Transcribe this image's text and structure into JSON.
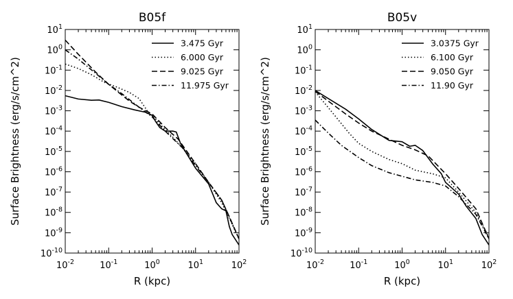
{
  "chart_data": [
    {
      "type": "line",
      "title": "B05f",
      "xlabel": "R (kpc)",
      "ylabel": "Surface Brightness (erg/s/cm^2)",
      "xscale": "log",
      "yscale": "log",
      "xlim": [
        0.01,
        100
      ],
      "ylim": [
        1e-10,
        10
      ],
      "xticks": [
        {
          "base": "10",
          "exp": "-2"
        },
        {
          "base": "10",
          "exp": "-1"
        },
        {
          "base": "10",
          "exp": "0"
        },
        {
          "base": "10",
          "exp": "1"
        },
        {
          "base": "10",
          "exp": "2"
        }
      ],
      "yticks": [
        {
          "base": "10",
          "exp": "-10"
        },
        {
          "base": "10",
          "exp": "-9"
        },
        {
          "base": "10",
          "exp": "-8"
        },
        {
          "base": "10",
          "exp": "-7"
        },
        {
          "base": "10",
          "exp": "-6"
        },
        {
          "base": "10",
          "exp": "-5"
        },
        {
          "base": "10",
          "exp": "-4"
        },
        {
          "base": "10",
          "exp": "-3"
        },
        {
          "base": "10",
          "exp": "-2"
        },
        {
          "base": "10",
          "exp": "-1"
        },
        {
          "base": "10",
          "exp": "0"
        },
        {
          "base": "10",
          "exp": "1"
        }
      ],
      "legend_position": "top-right",
      "series": [
        {
          "name": "3.475 Gyr",
          "style": "solid",
          "x": [
            0.01,
            0.02,
            0.04,
            0.06,
            0.1,
            0.2,
            0.4,
            0.7,
            1.0,
            1.2,
            1.5,
            2.0,
            3.0,
            3.6,
            4.5,
            6,
            10,
            20,
            30,
            40,
            50,
            60,
            70,
            100
          ],
          "y": [
            0.0055,
            0.0038,
            0.0033,
            0.0034,
            0.0026,
            0.0016,
            0.0011,
            0.00085,
            0.0006,
            0.0003,
            0.00015,
            0.0001,
            0.0001,
            9e-05,
            2.5e-05,
            9e-06,
            1.5e-06,
            2.5e-07,
            3e-08,
            1.5e-08,
            1.2e-08,
            2e-09,
            8e-10,
            2.5e-10
          ]
        },
        {
          "name": "6.000 Gyr",
          "style": "dotted",
          "x": [
            0.01,
            0.02,
            0.04,
            0.08,
            0.15,
            0.3,
            0.5,
            0.8,
            1.2,
            1.8,
            3,
            5,
            10,
            20,
            40,
            60,
            100
          ],
          "y": [
            0.2,
            0.12,
            0.06,
            0.025,
            0.015,
            0.008,
            0.004,
            0.0009,
            0.0004,
            0.00015,
            5e-05,
            1.5e-05,
            2.5e-06,
            3e-07,
            3e-08,
            5e-09,
            5e-10
          ]
        },
        {
          "name": "9.025 Gyr",
          "style": "dashed",
          "x": [
            0.01,
            0.02,
            0.05,
            0.1,
            0.2,
            0.3,
            0.5,
            1.0,
            2,
            4,
            10,
            20,
            40,
            60,
            100
          ],
          "y": [
            3.0,
            0.6,
            0.08,
            0.02,
            0.006,
            0.003,
            0.0015,
            0.0007,
            0.00015,
            4e-05,
            2.5e-06,
            3e-07,
            4e-08,
            6e-09,
            5e-10
          ]
        },
        {
          "name": "11.975 Gyr",
          "style": "dashdot",
          "x": [
            0.01,
            0.02,
            0.05,
            0.1,
            0.2,
            0.5,
            1.0,
            2,
            5,
            10,
            20,
            40,
            60,
            100
          ],
          "y": [
            1.0,
            0.35,
            0.07,
            0.02,
            0.007,
            0.0015,
            0.0005,
            0.0001,
            1.5e-05,
            2e-06,
            3e-07,
            4e-08,
            6e-09,
            5e-10
          ]
        }
      ]
    },
    {
      "type": "line",
      "title": "B05v",
      "xlabel": "R (kpc)",
      "ylabel": "Surface Brightness (erg/s/cm^2)",
      "xscale": "log",
      "yscale": "log",
      "xlim": [
        0.01,
        100
      ],
      "ylim": [
        1e-10,
        10
      ],
      "xticks": [
        {
          "base": "10",
          "exp": "-2"
        },
        {
          "base": "10",
          "exp": "-1"
        },
        {
          "base": "10",
          "exp": "0"
        },
        {
          "base": "10",
          "exp": "1"
        },
        {
          "base": "10",
          "exp": "2"
        }
      ],
      "yticks": [
        {
          "base": "10",
          "exp": "-10"
        },
        {
          "base": "10",
          "exp": "-9"
        },
        {
          "base": "10",
          "exp": "-8"
        },
        {
          "base": "10",
          "exp": "-7"
        },
        {
          "base": "10",
          "exp": "-6"
        },
        {
          "base": "10",
          "exp": "-5"
        },
        {
          "base": "10",
          "exp": "-4"
        },
        {
          "base": "10",
          "exp": "-3"
        },
        {
          "base": "10",
          "exp": "-2"
        },
        {
          "base": "10",
          "exp": "-1"
        },
        {
          "base": "10",
          "exp": "0"
        },
        {
          "base": "10",
          "exp": "1"
        }
      ],
      "legend_position": "top-right",
      "series": [
        {
          "name": "3.0375 Gyr",
          "style": "solid",
          "x": [
            0.01,
            0.02,
            0.05,
            0.1,
            0.2,
            0.5,
            1.0,
            1.5,
            2,
            3,
            5,
            8,
            10,
            20,
            30,
            50,
            70,
            100
          ],
          "y": [
            0.01,
            0.004,
            0.0012,
            0.0004,
            0.00012,
            3.5e-05,
            3e-05,
            1.8e-05,
            2e-05,
            1.1e-05,
            2.5e-06,
            8e-07,
            3e-07,
            8e-08,
            2e-08,
            5e-09,
            8e-10,
            2.5e-10
          ]
        },
        {
          "name": "6.100 Gyr",
          "style": "dotted",
          "x": [
            0.01,
            0.015,
            0.03,
            0.06,
            0.1,
            0.2,
            0.5,
            1,
            2,
            5,
            10,
            20,
            50,
            100
          ],
          "y": [
            0.0085,
            0.003,
            0.0005,
            8e-05,
            2.5e-05,
            1e-05,
            4e-06,
            2.5e-06,
            1.2e-06,
            8e-07,
            5e-07,
            1e-07,
            1e-08,
            6e-10
          ]
        },
        {
          "name": "9.050 Gyr",
          "style": "dashed",
          "x": [
            0.01,
            0.02,
            0.05,
            0.1,
            0.2,
            0.5,
            1,
            2,
            4,
            10,
            20,
            50,
            100
          ],
          "y": [
            0.009,
            0.003,
            0.0007,
            0.00025,
            0.0001,
            4e-05,
            2e-05,
            1.2e-05,
            6e-06,
            8e-07,
            1.5e-07,
            1.5e-08,
            5e-10
          ]
        },
        {
          "name": "11.90 Gyr",
          "style": "dashdot",
          "x": [
            0.01,
            0.02,
            0.04,
            0.1,
            0.2,
            0.5,
            1,
            2,
            5,
            10,
            20,
            50,
            100
          ],
          "y": [
            0.00035,
            8e-05,
            2e-05,
            5e-06,
            2e-06,
            9e-07,
            6e-07,
            4e-07,
            3e-07,
            2e-07,
            6e-08,
            8e-09,
            5e-10
          ]
        }
      ]
    }
  ]
}
